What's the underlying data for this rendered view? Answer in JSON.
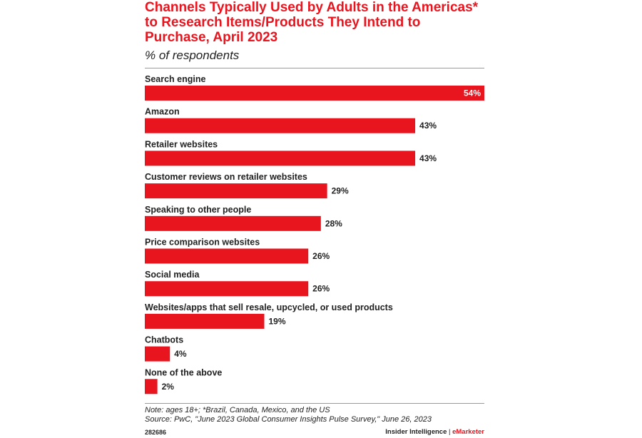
{
  "title": "Channels Typically Used by Adults in the Americas* to Research Items/Products They Intend to Purchase, April 2023",
  "subtitle": "% of respondents",
  "colors": {
    "bar": "#e8141e",
    "title": "#e8141e",
    "text": "#222222",
    "inside_label": "#ffffff"
  },
  "chart_data": {
    "type": "bar",
    "orientation": "horizontal",
    "title": "Channels Typically Used by Adults in the Americas* to Research Items/Products They Intend to Purchase, April 2023",
    "subtitle": "% of respondents",
    "categories": [
      "Search engine",
      "Amazon",
      "Retailer websites",
      "Customer reviews on retailer websites",
      "Speaking to other people",
      "Price comparison websites",
      "Social media",
      "Websites/apps that sell resale, upcycled, or used products",
      "Chatbots",
      "None of the above"
    ],
    "values": [
      54,
      43,
      43,
      29,
      28,
      26,
      26,
      19,
      4,
      2
    ],
    "value_labels": [
      "54%",
      "43%",
      "43%",
      "29%",
      "28%",
      "26%",
      "26%",
      "19%",
      "4%",
      "2%"
    ],
    "unit": "%",
    "xlim": [
      0,
      54
    ],
    "grid": false,
    "legend": "none"
  },
  "notes": {
    "note": "Note: ages 18+; *Brazil, Canada, Mexico, and the US",
    "source": "Source: PwC, \"June 2023 Global Consumer Insights Pulse Survey,\" June 26, 2023"
  },
  "footer": {
    "chart_id": "282686",
    "brand_left": "Insider Intelligence",
    "brand_sep": "|",
    "brand_right": "eMarketer"
  }
}
